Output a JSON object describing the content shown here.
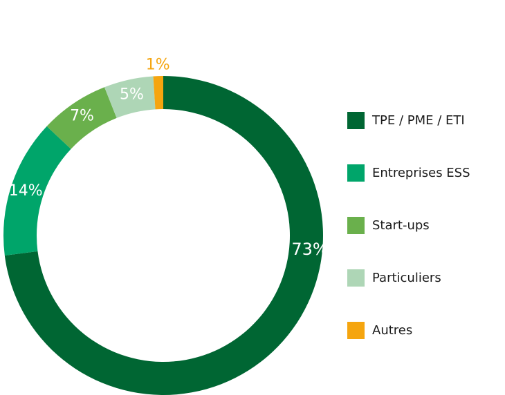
{
  "chart_data": {
    "type": "pie",
    "variant": "donut",
    "title": "",
    "slices": [
      {
        "label": "TPE / PME / ETI",
        "value": 73,
        "display": "73%",
        "color": "#006633"
      },
      {
        "label": "Entreprises ESS",
        "value": 14,
        "display": "14%",
        "color": "#00a56a"
      },
      {
        "label": "Start-ups",
        "value": 7,
        "display": "7%",
        "color": "#6ab04c"
      },
      {
        "label": "Particuliers",
        "value": 5,
        "display": "5%",
        "color": "#aed6b6"
      },
      {
        "label": "Autres",
        "value": 1,
        "display": "1%",
        "color": "#f5a50f"
      }
    ],
    "legend": "right"
  }
}
